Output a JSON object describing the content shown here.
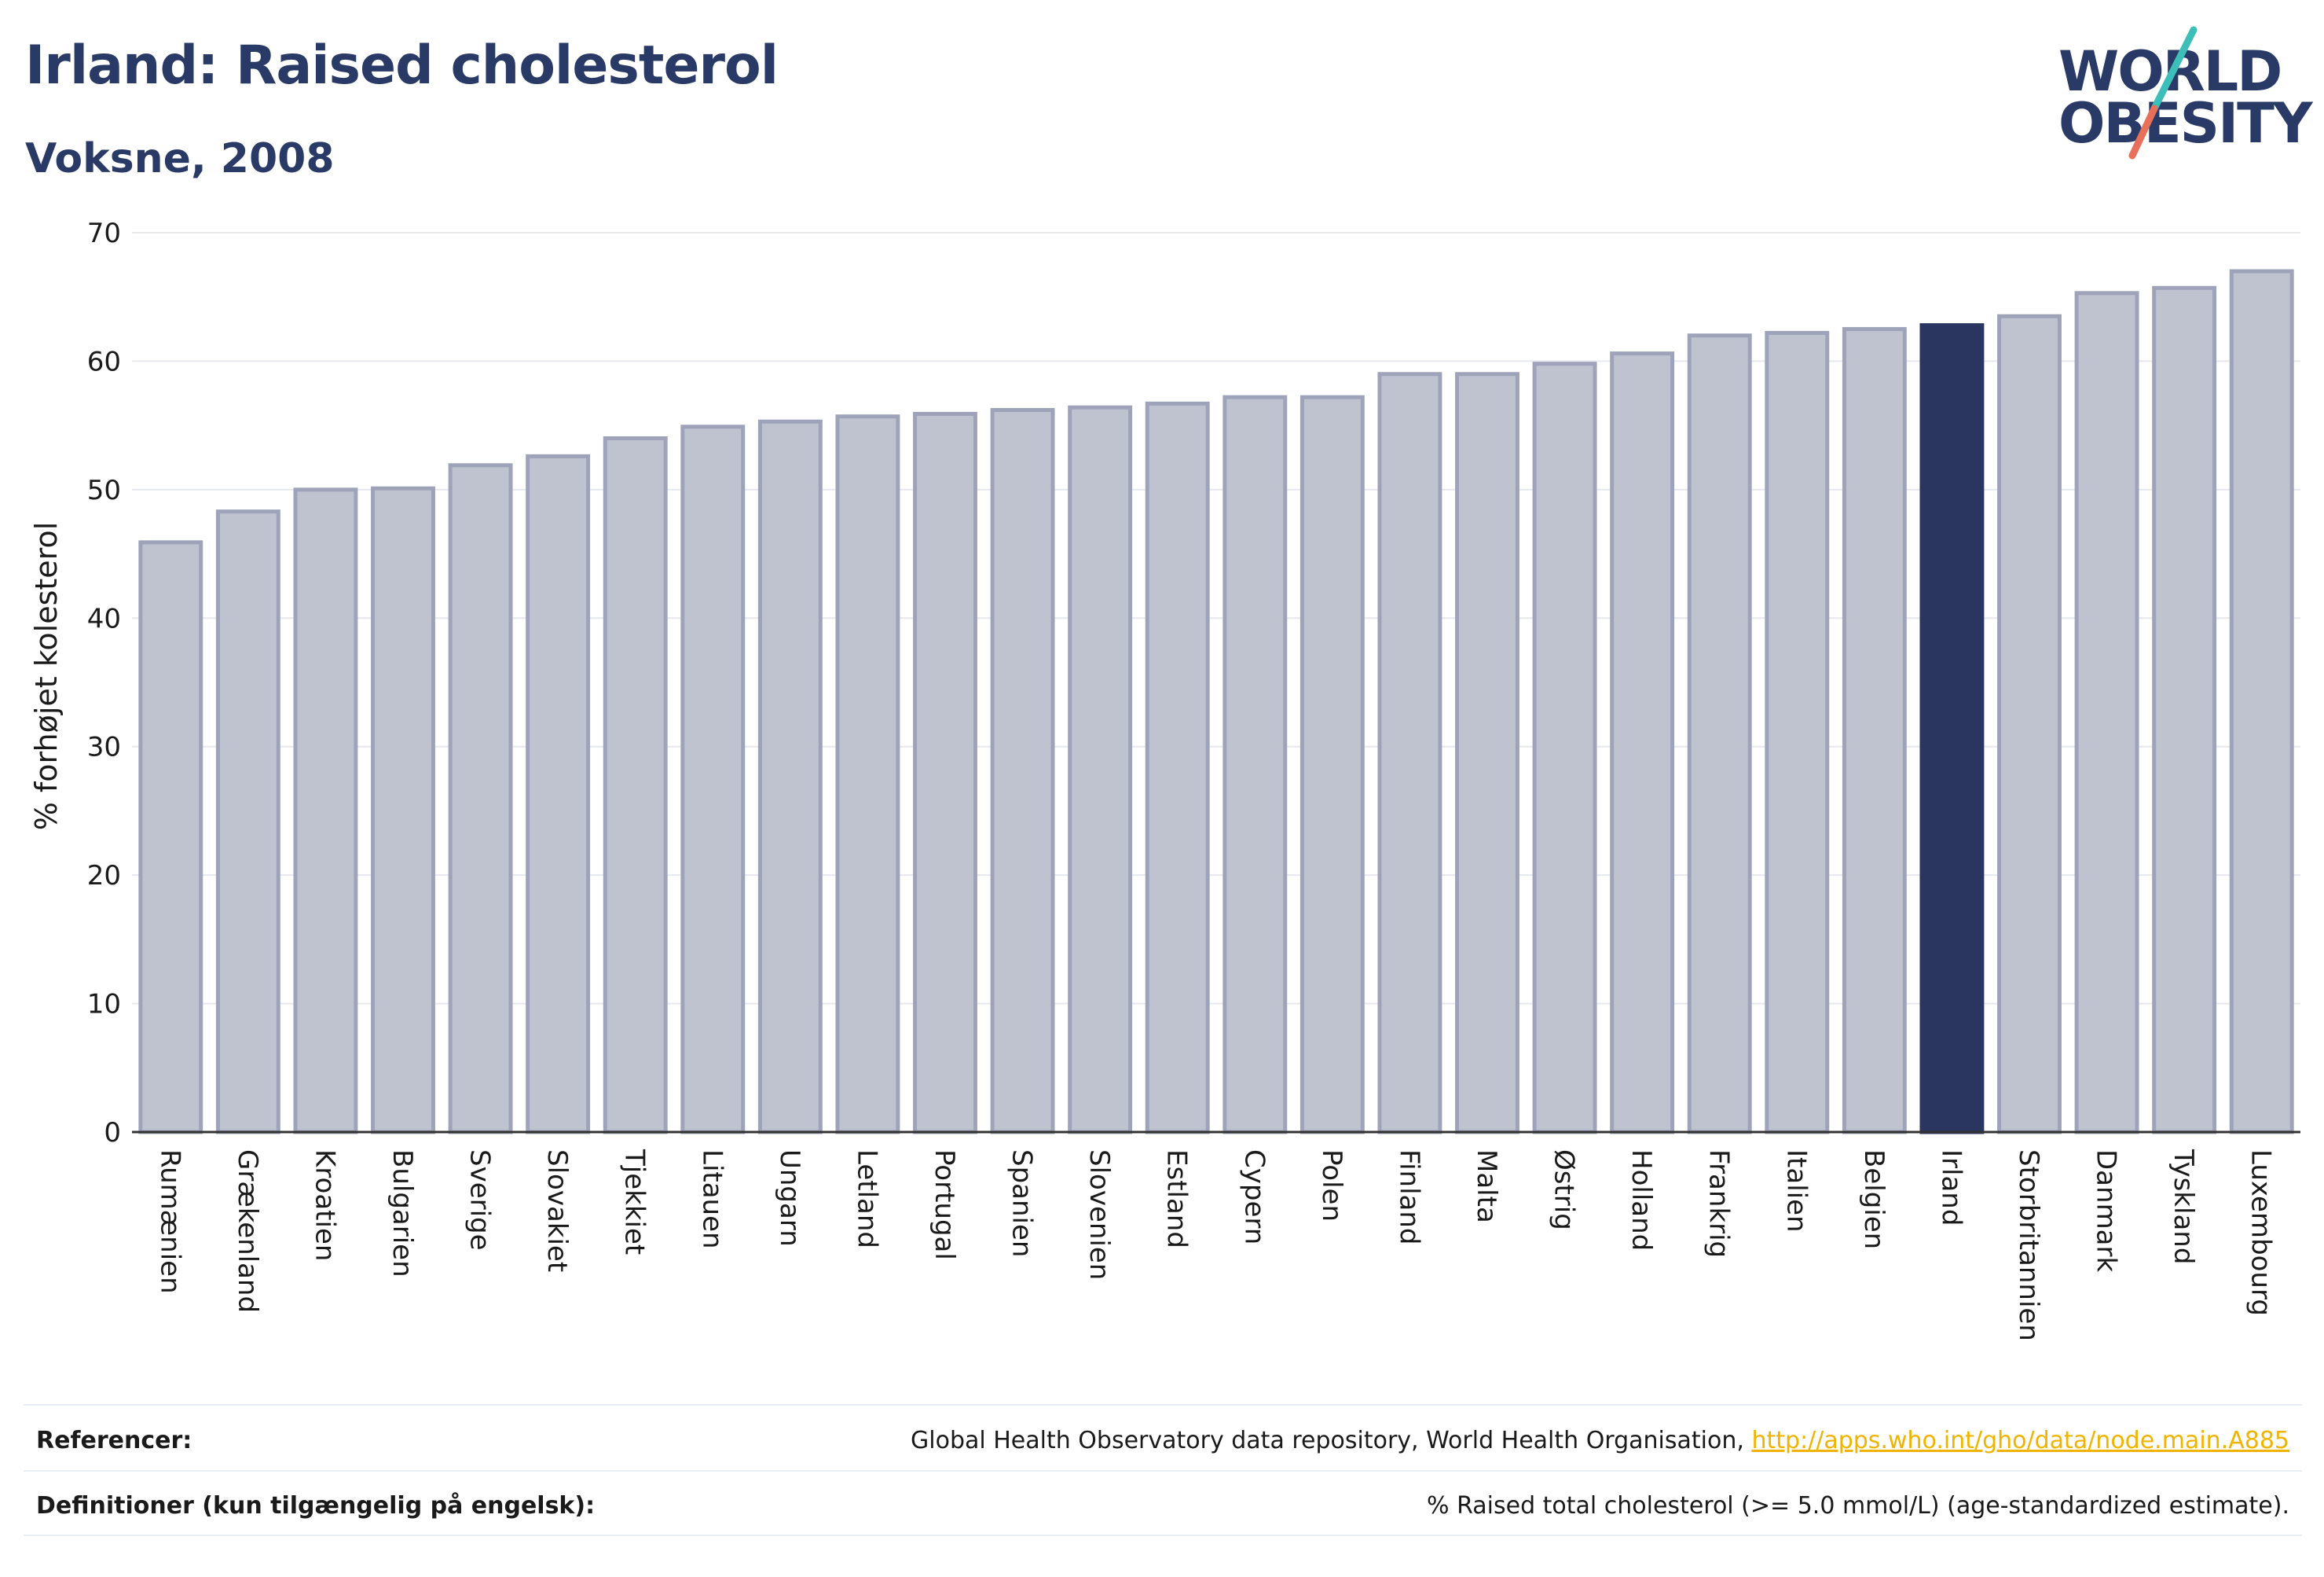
{
  "header": {
    "title": "Irland: Raised cholesterol",
    "subtitle": "Voksne, 2008"
  },
  "logo": {
    "line1": "WORLD",
    "line2": "OBESITY",
    "colors": {
      "text": "#2a3a66",
      "slash_top": "#3bbfb8",
      "slash_bottom": "#e8705a"
    }
  },
  "footer": {
    "references_label": "Referencer:",
    "references_text": "Global Health Observatory data repository, World Health Organisation, ",
    "references_link": "http://apps.who.int/gho/data/node.main.A885",
    "definitions_label": "Definitioner (kun tilgængelig på engelsk):",
    "definitions_text": "% Raised total cholesterol (>= 5.0 mmol/L) (age-standardized estimate)."
  },
  "chart_data": {
    "type": "bar",
    "title": "Irland: Raised cholesterol",
    "subtitle": "Voksne, 2008",
    "xlabel": "",
    "ylabel": "% forhøjet kolesterol",
    "ylim": [
      0,
      70
    ],
    "yticks": [
      0,
      10,
      20,
      30,
      40,
      50,
      60,
      70
    ],
    "grid": true,
    "highlight": "Irland",
    "colors": {
      "bar": "#bfc3d0",
      "bar_edge": "#9ea3b9",
      "highlight": "#2a3560"
    },
    "categories": [
      "Rumænien",
      "Grækenland",
      "Kroatien",
      "Bulgarien",
      "Sverige",
      "Slovakiet",
      "Tjekkiet",
      "Litauen",
      "Ungarn",
      "Letland",
      "Portugal",
      "Spanien",
      "Slovenien",
      "Estland",
      "Cypern",
      "Polen",
      "Finland",
      "Malta",
      "Østrig",
      "Holland",
      "Frankrig",
      "Italien",
      "Belgien",
      "Irland",
      "Storbritannien",
      "Danmark",
      "Tyskland",
      "Luxembourg"
    ],
    "values": [
      45.9,
      48.3,
      50.0,
      50.1,
      51.9,
      52.6,
      54.0,
      54.9,
      55.3,
      55.7,
      55.9,
      56.2,
      56.4,
      56.7,
      57.2,
      57.2,
      59.0,
      59.0,
      59.8,
      60.6,
      62.0,
      62.2,
      62.5,
      62.8,
      63.5,
      65.3,
      65.7,
      67.0
    ]
  }
}
